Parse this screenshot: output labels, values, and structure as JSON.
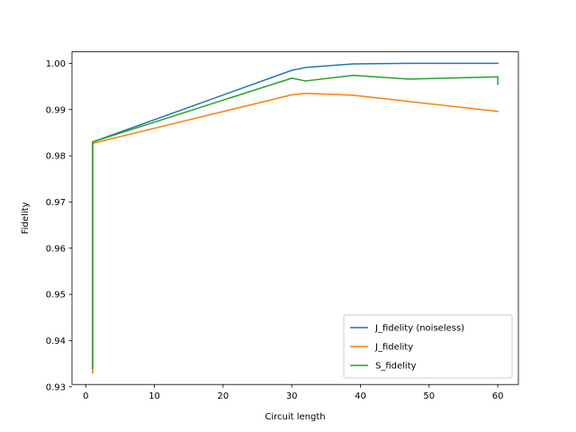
{
  "chart_data": {
    "type": "line",
    "title": "",
    "xlabel": "Circuit length",
    "ylabel": "Fidelity",
    "xlim": [
      -2,
      63
    ],
    "ylim": [
      0.9305,
      1.0025
    ],
    "xticks": [
      0,
      10,
      20,
      30,
      40,
      50,
      60
    ],
    "xtick_labels": [
      "0",
      "10",
      "20",
      "30",
      "40",
      "50",
      "60"
    ],
    "yticks": [
      0.93,
      0.94,
      0.95,
      0.96,
      0.97,
      0.98,
      0.99,
      1.0
    ],
    "ytick_labels": [
      "0.93",
      "0.94",
      "0.95",
      "0.96",
      "0.97",
      "0.98",
      "0.99",
      "1.00"
    ],
    "grid": false,
    "legend_position": "lower right",
    "series": [
      {
        "name": "J_fidelity (noiseless)",
        "color": "#1f77b4",
        "x": [
          1,
          1,
          30,
          32,
          39,
          47,
          60
        ],
        "y": [
          0.934,
          0.983,
          0.9985,
          0.9991,
          0.9999,
          1.0,
          1.0
        ]
      },
      {
        "name": "J_fidelity",
        "color": "#ff7f0e",
        "x": [
          1,
          1,
          30,
          32,
          39,
          60
        ],
        "y": [
          0.933,
          0.9827,
          0.9932,
          0.9935,
          0.9931,
          0.9896
        ]
      },
      {
        "name": "S_fidelity",
        "color": "#2ca02c",
        "x": [
          1,
          1,
          30,
          32,
          39,
          47,
          60,
          60
        ],
        "y": [
          0.934,
          0.983,
          0.9968,
          0.9962,
          0.9974,
          0.9966,
          0.9971,
          0.9955
        ]
      }
    ]
  }
}
